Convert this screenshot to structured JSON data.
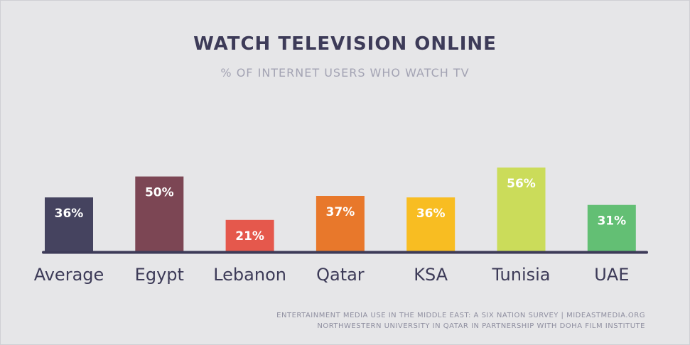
{
  "chart_data": {
    "type": "bar",
    "title": "WATCH TELEVISION ONLINE",
    "subtitle": "% OF INTERNET USERS WHO WATCH TV",
    "categories": [
      "Average",
      "Egypt",
      "Lebanon",
      "Qatar",
      "KSA",
      "Tunisia",
      "UAE"
    ],
    "values": [
      36,
      50,
      21,
      37,
      36,
      56,
      31
    ],
    "labels": [
      "36%",
      "50%",
      "21%",
      "37%",
      "36%",
      "56%",
      "31%"
    ],
    "colors": [
      "#45435f",
      "#7c4654",
      "#e5584c",
      "#e8782b",
      "#f8bd22",
      "#cbdc5a",
      "#63bf74"
    ],
    "axis_color": "#3d3b58",
    "xlabel": "",
    "ylabel": "",
    "ylim": [
      0,
      60
    ],
    "grid": false
  },
  "footer": {
    "line1": "ENTERTAINMENT MEDIA USE IN THE MIDDLE EAST: A SIX NATION SURVEY | MIDEASTMEDIA.ORG",
    "line2": "NORTHWESTERN UNIVERSITY IN QATAR IN PARTNERSHIP WITH DOHA FILM INSTITUTE"
  }
}
